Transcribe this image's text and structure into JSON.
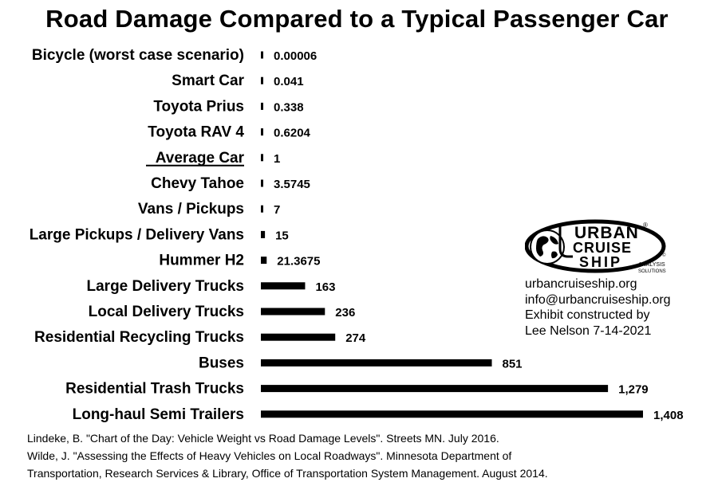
{
  "title": "Road Damage Compared to a Typical Passenger Car",
  "chart_data": {
    "type": "bar",
    "orientation": "horizontal",
    "title": "Road Damage Compared to a Typical Passenger Car",
    "categories": [
      "Bicycle (worst case scenario)",
      "Smart Car",
      "Toyota Prius",
      "Toyota RAV 4",
      "Average Car",
      "Chevy Tahoe",
      "Vans / Pickups",
      "Large Pickups / Delivery Vans",
      "Hummer H2",
      "Large Delivery Trucks",
      "Local Delivery Trucks",
      "Residential Recycling Trucks",
      "Buses",
      "Residential Trash Trucks",
      "Long-haul Semi Trailers"
    ],
    "values": [
      6e-05,
      0.041,
      0.338,
      0.6204,
      1,
      3.5745,
      7,
      15,
      21.3675,
      163,
      236,
      274,
      851,
      1279,
      1408
    ],
    "value_labels": [
      "0.00006",
      "0.041",
      "0.338",
      "0.6204",
      "1",
      "3.5745",
      "7",
      "15",
      "21.3675",
      "163",
      "236",
      "274",
      "851",
      "1,279",
      "1,408"
    ],
    "underlined_category": "Average Car",
    "bar_color": "#000000",
    "xlim": [
      0,
      1408
    ]
  },
  "brand": {
    "logo_lines": [
      "URBAN",
      "CRUISE",
      "SHIP"
    ],
    "logo_sub": [
      "ANALYSIS",
      "SOLUTIONS"
    ],
    "registered": "®",
    "copyright": "©"
  },
  "contact": {
    "website": "urbancruiseship.org",
    "email": "info@urbancruiseship.org",
    "credit_line1": "Exhibit constructed by",
    "credit_line2": "Lee Nelson 7-14-2021"
  },
  "sources": [
    "Lindeke, B. \"Chart of the Day: Vehicle Weight vs Road Damage Levels\". Streets MN. July 2016.",
    "Wilde, J. \"Assessing the Effects of Heavy Vehicles on Local Roadways\". Minnesota Department of",
    "Transportation, Research Services & Library, Office of Transportation System Management. August 2014."
  ]
}
